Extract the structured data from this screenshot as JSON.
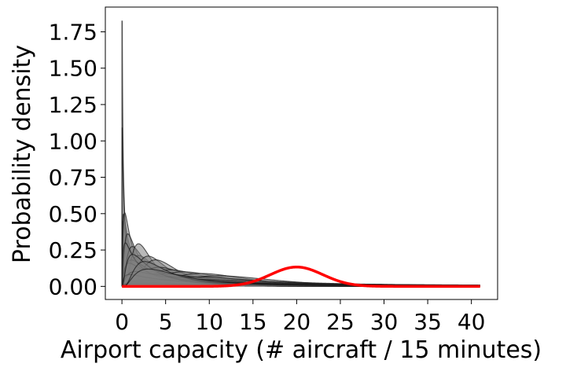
{
  "chart_data": {
    "type": "area",
    "title": "",
    "xlabel": "Airport capacity (# aircraft / 15 minutes)",
    "ylabel": "Probability density",
    "xlim": [
      -1.9,
      43.0
    ],
    "ylim": [
      -0.09,
      1.92
    ],
    "xticks": [
      0,
      5,
      10,
      15,
      20,
      25,
      30,
      35,
      40
    ],
    "xtick_labels": [
      "0",
      "5",
      "10",
      "15",
      "20",
      "25",
      "30",
      "35",
      "40"
    ],
    "yticks": [
      0.0,
      0.25,
      0.5,
      0.75,
      1.0,
      1.25,
      1.5,
      1.75
    ],
    "ytick_labels": [
      "0.00",
      "0.25",
      "0.50",
      "0.75",
      "1.00",
      "1.25",
      "1.50",
      "1.75"
    ],
    "grid": false,
    "x_range": [
      0,
      41
    ],
    "gray_family": {
      "distribution": "lognormal",
      "fill_color": "#808080",
      "line_color": "#1a1a1a",
      "members": [
        {
          "mu": -0.2,
          "sigma": 2.3
        },
        {
          "mu": 0.3,
          "sigma": 2.0
        },
        {
          "mu": 0.8,
          "sigma": 1.7
        },
        {
          "mu": 0.5,
          "sigma": 1.5
        },
        {
          "mu": 0.3,
          "sigma": 1.2
        },
        {
          "mu": 0.6,
          "sigma": 1.0
        },
        {
          "mu": 0.9,
          "sigma": 0.85
        },
        {
          "mu": 1.2,
          "sigma": 0.75
        },
        {
          "mu": 1.0,
          "sigma": 0.6
        },
        {
          "mu": 1.4,
          "sigma": 0.55
        },
        {
          "mu": 1.6,
          "sigma": 0.5
        },
        {
          "mu": 1.8,
          "sigma": 0.6
        },
        {
          "mu": 2.0,
          "sigma": 0.55
        },
        {
          "mu": 2.2,
          "sigma": 0.5
        },
        {
          "mu": 2.4,
          "sigma": 0.45
        },
        {
          "mu": 2.6,
          "sigma": 0.45
        },
        {
          "mu": 1.3,
          "sigma": 1.1
        },
        {
          "mu": 1.7,
          "sigma": 0.9
        },
        {
          "mu": 2.1,
          "sigma": 0.75
        },
        {
          "mu": 2.5,
          "sigma": 0.6
        },
        {
          "mu": 1.5,
          "sigma": 1.3
        },
        {
          "mu": 2.0,
          "sigma": 1.0
        },
        {
          "mu": 2.3,
          "sigma": 0.9
        },
        {
          "mu": 2.8,
          "sigma": 0.7
        },
        {
          "mu": 2.6,
          "sigma": 1.1
        },
        {
          "mu": 3.0,
          "sigma": 0.9
        },
        {
          "mu": 3.2,
          "sigma": 1.2
        },
        {
          "mu": 3.4,
          "sigma": 1.0
        },
        {
          "mu": 3.7,
          "sigma": 1.3
        },
        {
          "mu": 4.0,
          "sigma": 1.5
        },
        {
          "mu": 4.5,
          "sigma": 1.6
        },
        {
          "mu": 0.9,
          "sigma": 1.35
        },
        {
          "mu": 1.9,
          "sigma": 1.2
        },
        {
          "mu": 2.9,
          "sigma": 1.4
        },
        {
          "mu": 3.5,
          "sigma": 1.7
        },
        {
          "mu": 2.4,
          "sigma": 1.6
        },
        {
          "mu": 4.2,
          "sigma": 1.9
        },
        {
          "mu": 1.1,
          "sigma": 0.95
        },
        {
          "mu": 1.45,
          "sigma": 0.7
        },
        {
          "mu": 1.75,
          "sigma": 0.8
        }
      ]
    },
    "highlight": {
      "distribution": "normal",
      "color": "#ff0000",
      "mean": 20.0,
      "std": 3.0,
      "peak": 0.133
    }
  }
}
